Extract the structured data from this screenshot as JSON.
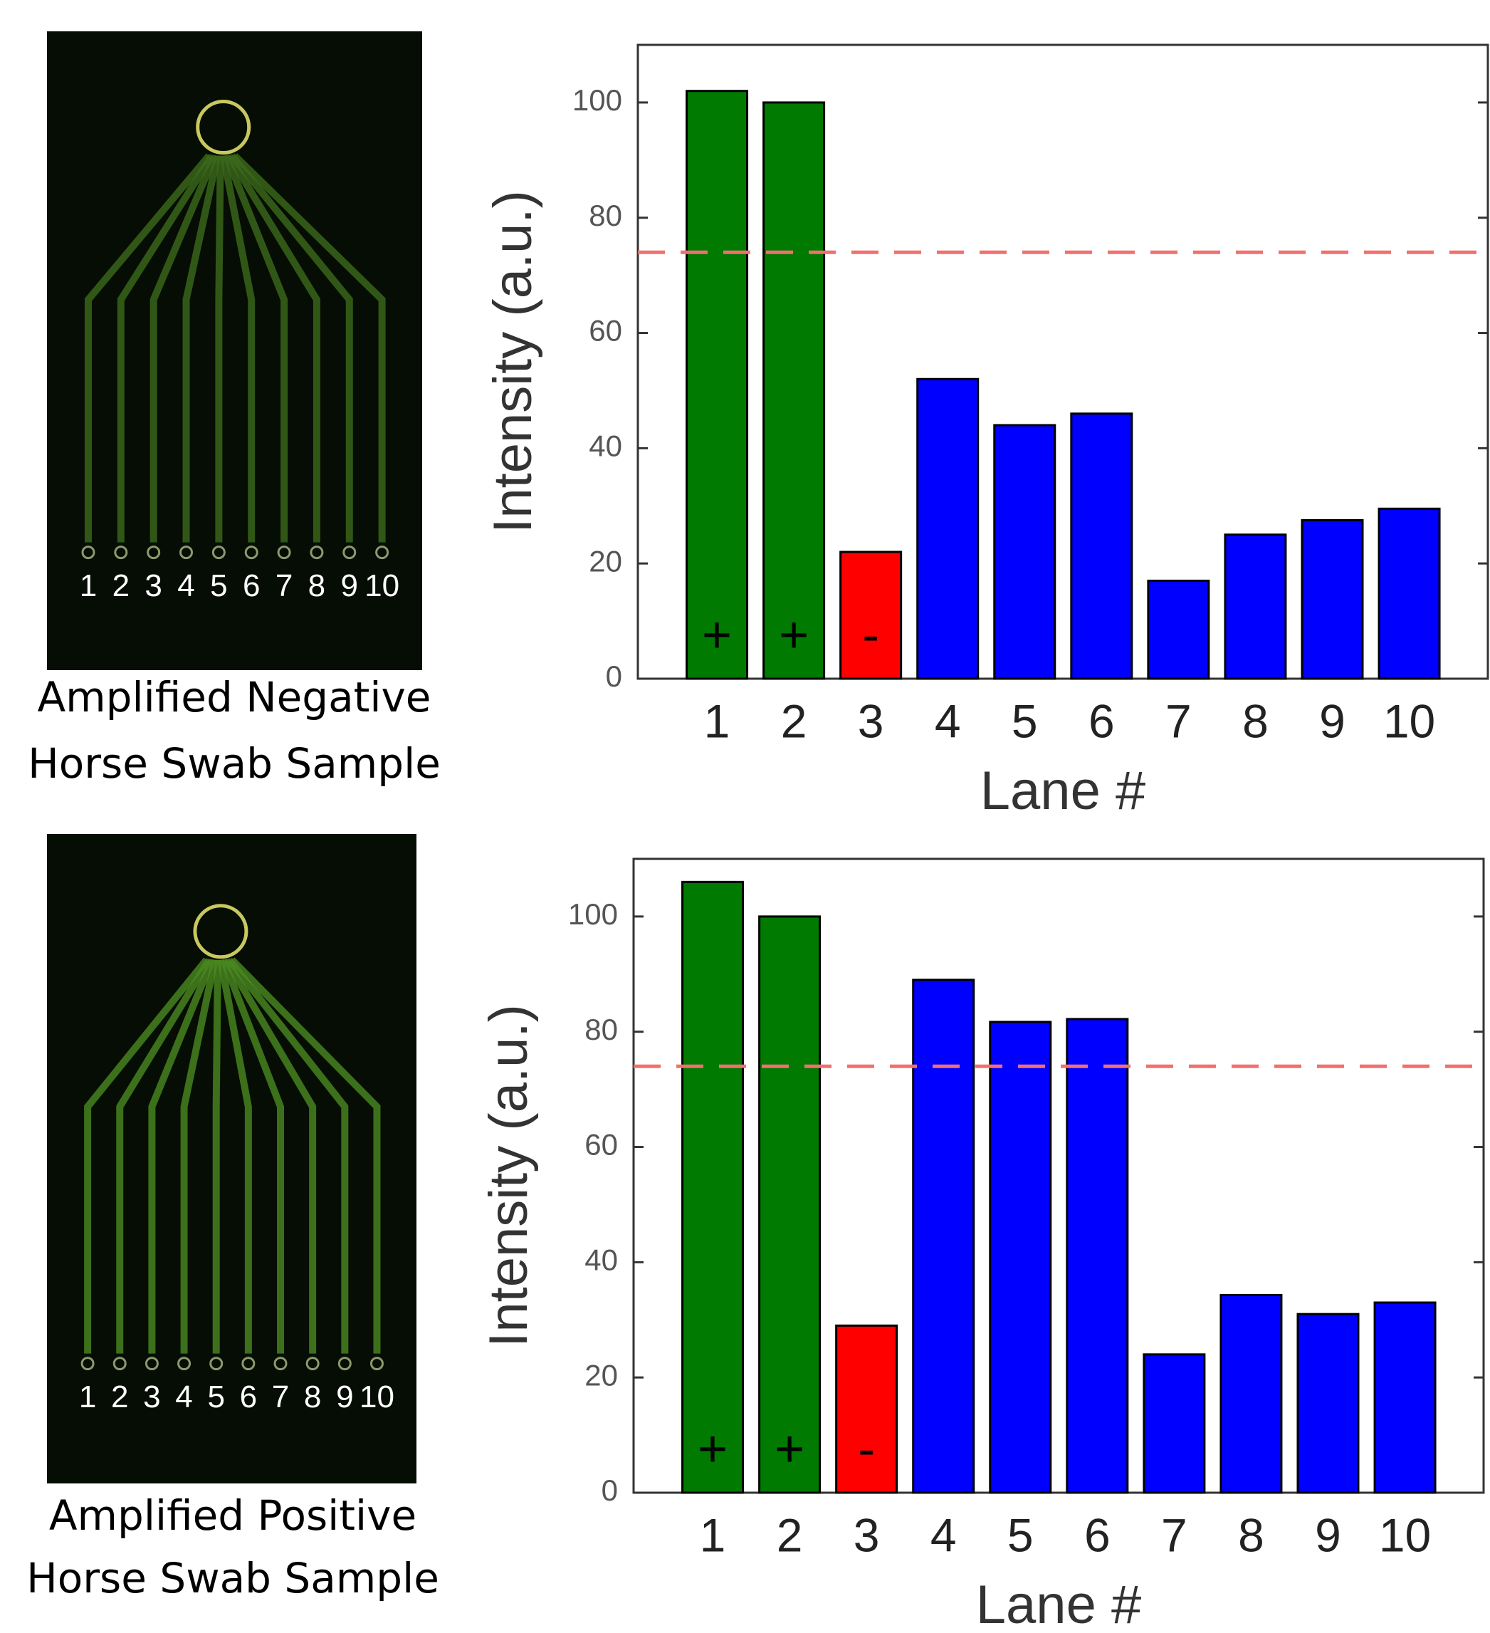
{
  "panels": [
    {
      "caption": [
        "Amplified Negative",
        "Horse Swab Sample"
      ],
      "lanes": [
        "1",
        "2",
        "3",
        "4",
        "5",
        "6",
        "7",
        "8",
        "9",
        "10"
      ]
    },
    {
      "caption": [
        "Amplified Positive",
        "Horse Swab Sample"
      ],
      "lanes": [
        "1",
        "2",
        "3",
        "4",
        "5",
        "6",
        "7",
        "8",
        "9",
        "10"
      ]
    }
  ],
  "chart_data": [
    {
      "type": "bar",
      "xlabel": "Lane #",
      "ylabel": "Intensity (a.u.)",
      "categories": [
        "1",
        "2",
        "3",
        "4",
        "5",
        "6",
        "7",
        "8",
        "9",
        "10"
      ],
      "values": [
        102,
        100,
        22,
        52,
        44,
        46,
        17,
        25,
        27.5,
        29.5
      ],
      "colors": [
        "#007a00",
        "#007a00",
        "#ff0000",
        "#0000ff",
        "#0000ff",
        "#0000ff",
        "#0000ff",
        "#0000ff",
        "#0000ff",
        "#0000ff"
      ],
      "bar_marks": [
        "+",
        "+",
        "-"
      ],
      "threshold": 74,
      "threshold_color": "#f07070",
      "ylim": [
        0,
        110
      ],
      "yticks": [
        0,
        20,
        40,
        60,
        80,
        100
      ]
    },
    {
      "type": "bar",
      "xlabel": "Lane #",
      "ylabel": "Intensity (a.u.)",
      "categories": [
        "1",
        "2",
        "3",
        "4",
        "5",
        "6",
        "7",
        "8",
        "9",
        "10"
      ],
      "values": [
        106,
        100,
        29,
        89,
        81.7,
        82.2,
        24,
        34.3,
        31,
        33
      ],
      "colors": [
        "#007a00",
        "#007a00",
        "#ff0000",
        "#0000ff",
        "#0000ff",
        "#0000ff",
        "#0000ff",
        "#0000ff",
        "#0000ff",
        "#0000ff"
      ],
      "bar_marks": [
        "+",
        "+",
        "-"
      ],
      "threshold": 74,
      "threshold_color": "#f07070",
      "ylim": [
        0,
        110
      ],
      "yticks": [
        0,
        20,
        40,
        60,
        80,
        100
      ]
    }
  ]
}
